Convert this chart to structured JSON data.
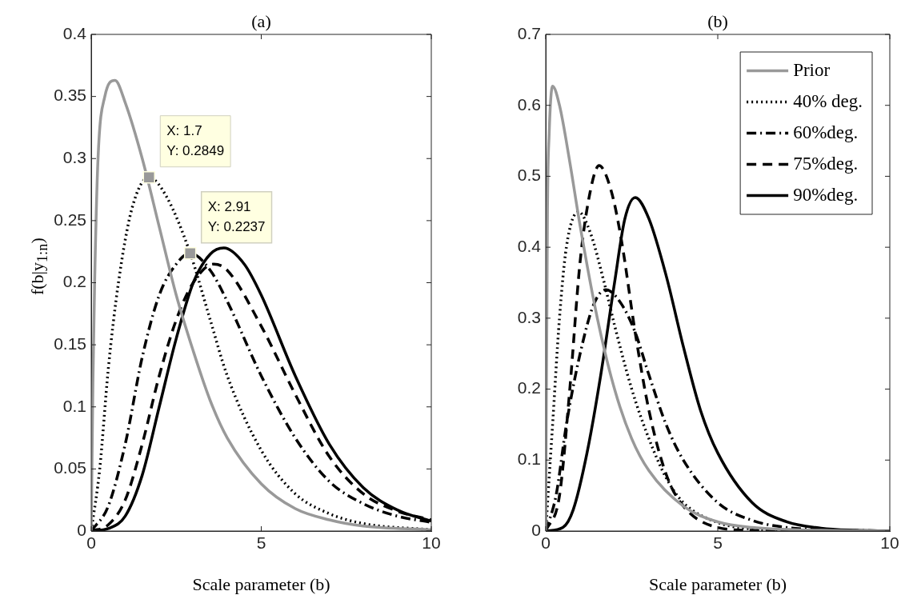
{
  "chart_data": [
    {
      "type": "line",
      "title": "(a)",
      "xlabel": "Scale parameter (b)",
      "ylabel": "f(b|y$_{1:n}$)",
      "xlim": [
        0,
        10
      ],
      "xticks": [
        0,
        5,
        10
      ],
      "ylim": [
        0,
        0.4
      ],
      "yticks": [
        0,
        0.05,
        0.1,
        0.15,
        0.2,
        0.25,
        0.3,
        0.35,
        0.4
      ],
      "grid": false,
      "legend": false,
      "marker": "none",
      "annotations": [
        {
          "text": "X: 1.7\nY: 0.2849",
          "x": 1.7,
          "y": 0.2849
        },
        {
          "text": "X: 2.91\nY: 0.2237",
          "x": 2.91,
          "y": 0.2237
        }
      ],
      "series": [
        {
          "color": "#999999",
          "line_style": "solid",
          "x": [
            0,
            0.05,
            0.1,
            0.2,
            0.4,
            0.7,
            1,
            1.5,
            2,
            2.5,
            3,
            3.5,
            4,
            5,
            6,
            7,
            8,
            10
          ],
          "values": [
            0,
            0.12,
            0.2,
            0.3,
            0.35,
            0.363,
            0.345,
            0.3,
            0.245,
            0.19,
            0.145,
            0.105,
            0.075,
            0.038,
            0.018,
            0.009,
            0.004,
            0.001
          ]
        },
        {
          "color": "#000000",
          "line_style": "dotted",
          "x": [
            0,
            0.25,
            0.5,
            0.8,
            1.2,
            1.7,
            2.2,
            2.91,
            3.5,
            4,
            5,
            6,
            7,
            8,
            10
          ],
          "values": [
            0,
            0.05,
            0.13,
            0.2,
            0.26,
            0.2849,
            0.27,
            0.2237,
            0.17,
            0.125,
            0.065,
            0.03,
            0.014,
            0.006,
            0.001
          ]
        },
        {
          "color": "#000000",
          "line_style": "dashdot",
          "x": [
            0,
            0.5,
            1,
            1.5,
            2,
            2.5,
            2.91,
            3.5,
            4,
            5,
            6,
            7,
            8,
            9,
            10
          ],
          "values": [
            0,
            0.02,
            0.07,
            0.14,
            0.19,
            0.215,
            0.2237,
            0.21,
            0.185,
            0.125,
            0.075,
            0.04,
            0.022,
            0.012,
            0.007
          ]
        },
        {
          "color": "#000000",
          "line_style": "dashed",
          "x": [
            0,
            0.5,
            1,
            1.5,
            2,
            2.5,
            3,
            3.6,
            4,
            5,
            6,
            7,
            8,
            9,
            10
          ],
          "values": [
            0,
            0.005,
            0.025,
            0.07,
            0.125,
            0.17,
            0.2,
            0.215,
            0.21,
            0.165,
            0.11,
            0.06,
            0.03,
            0.016,
            0.009
          ]
        },
        {
          "color": "#000000",
          "line_style": "solid",
          "x": [
            0,
            0.5,
            1,
            1.5,
            2,
            2.5,
            3,
            3.5,
            3.9,
            4.5,
            5,
            6,
            7,
            8,
            9,
            10
          ],
          "values": [
            0,
            0.002,
            0.012,
            0.045,
            0.1,
            0.155,
            0.2,
            0.223,
            0.228,
            0.215,
            0.19,
            0.125,
            0.07,
            0.035,
            0.017,
            0.008
          ]
        }
      ]
    },
    {
      "type": "line",
      "title": "(b)",
      "xlabel": "Scale parameter (b)",
      "xlim": [
        0,
        10
      ],
      "xticks": [
        0,
        5,
        10
      ],
      "ylim": [
        0,
        0.7
      ],
      "yticks": [
        0,
        0.1,
        0.2,
        0.3,
        0.4,
        0.5,
        0.6,
        0.7
      ],
      "grid": false,
      "legend": "top right",
      "marker": "none",
      "series": [
        {
          "name": "Prior",
          "color": "#999999",
          "line_style": "solid",
          "x": [
            0,
            0.05,
            0.1,
            0.2,
            0.4,
            0.7,
            1,
            1.5,
            2,
            2.5,
            3,
            4,
            5,
            6,
            8,
            10
          ],
          "values": [
            0,
            0.45,
            0.56,
            0.627,
            0.6,
            0.52,
            0.43,
            0.3,
            0.2,
            0.13,
            0.085,
            0.035,
            0.013,
            0.005,
            0.001,
            0
          ]
        },
        {
          "name": "40% deg.",
          "color": "#000000",
          "line_style": "dotted",
          "x": [
            0,
            0.2,
            0.4,
            0.6,
            0.95,
            1.3,
            1.7,
            2,
            2.5,
            3,
            3.5,
            4,
            5,
            6,
            8,
            10
          ],
          "values": [
            0,
            0.15,
            0.3,
            0.4,
            0.45,
            0.42,
            0.35,
            0.29,
            0.2,
            0.13,
            0.075,
            0.04,
            0.012,
            0.003,
            0,
            0
          ]
        },
        {
          "name": "60%deg.",
          "color": "#000000",
          "line_style": "dashdot",
          "x": [
            0,
            0.3,
            0.6,
            1,
            1.4,
            1.75,
            2.2,
            2.6,
            3,
            3.5,
            4,
            5,
            6,
            7,
            8,
            10
          ],
          "values": [
            0,
            0.05,
            0.15,
            0.25,
            0.32,
            0.34,
            0.32,
            0.28,
            0.22,
            0.15,
            0.1,
            0.04,
            0.015,
            0.005,
            0.002,
            0
          ]
        },
        {
          "name": "75%deg.",
          "color": "#000000",
          "line_style": "dashed",
          "x": [
            0,
            0.4,
            0.7,
            1,
            1.3,
            1.55,
            1.9,
            2.2,
            2.6,
            3,
            3.5,
            4,
            5,
            6,
            10
          ],
          "values": [
            0,
            0.05,
            0.2,
            0.38,
            0.48,
            0.515,
            0.48,
            0.41,
            0.28,
            0.17,
            0.08,
            0.035,
            0.005,
            0.001,
            0
          ]
        },
        {
          "name": "90%deg.",
          "color": "#000000",
          "line_style": "solid",
          "x": [
            0,
            0.5,
            0.8,
            1.2,
            1.6,
            2,
            2.3,
            2.6,
            3,
            3.5,
            4,
            4.5,
            5,
            6,
            7,
            8,
            9,
            10
          ],
          "values": [
            0,
            0.005,
            0.03,
            0.11,
            0.22,
            0.35,
            0.44,
            0.47,
            0.44,
            0.36,
            0.26,
            0.17,
            0.11,
            0.04,
            0.013,
            0.004,
            0.001,
            0
          ]
        }
      ]
    }
  ]
}
